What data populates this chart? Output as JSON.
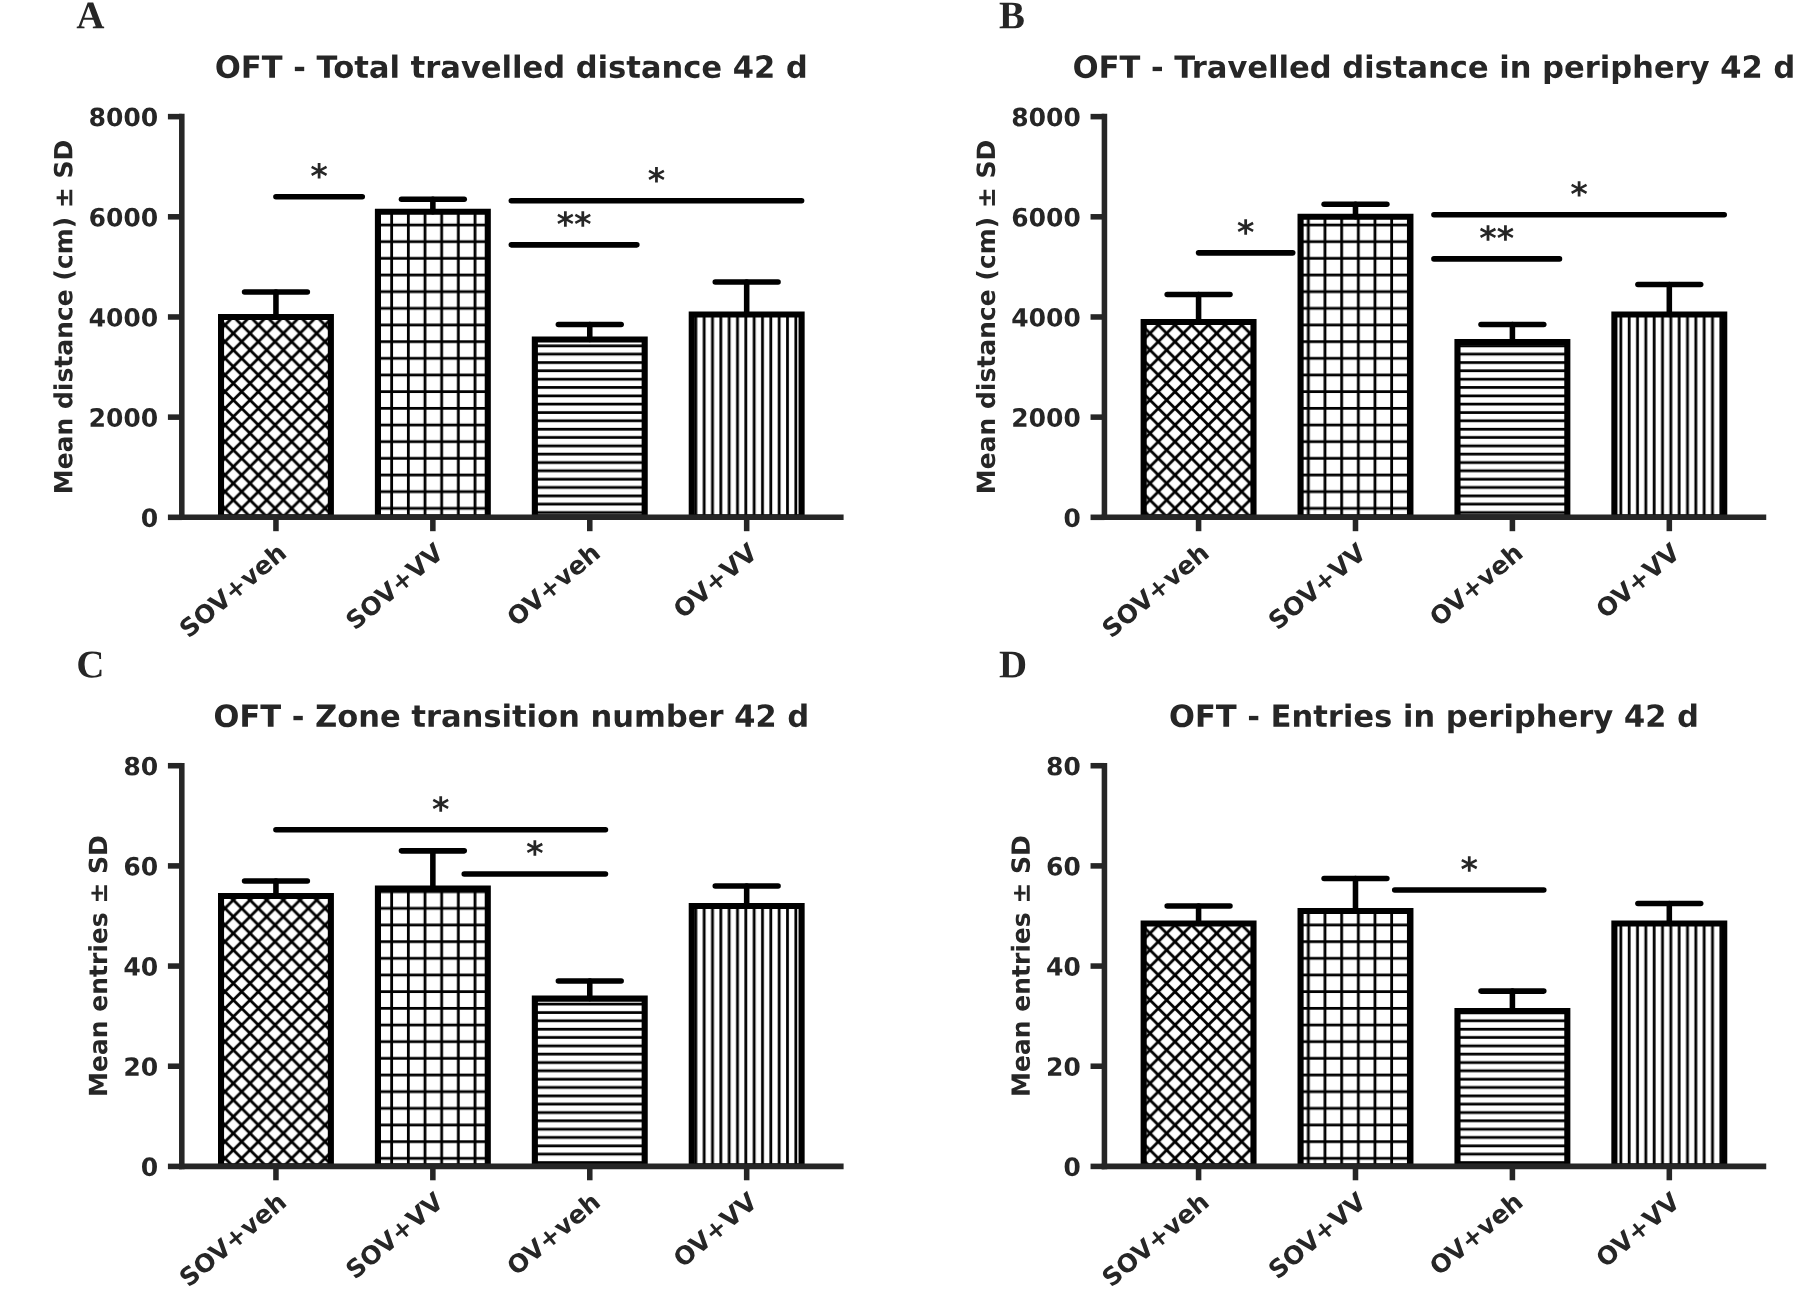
{
  "chart_data": [
    {
      "type": "bar",
      "title": "OFT - Total travelled distance 42 d",
      "ylabel": "Mean distance (cm) ± SD",
      "categories": [
        "SOV+veh",
        "SOV+VV",
        "OV+veh",
        "OV+VV"
      ],
      "values": [
        4000,
        6100,
        3550,
        4050
      ],
      "errors": [
        [
          4000,
          4500
        ],
        [
          6100,
          6350
        ],
        [
          3550,
          3850
        ],
        [
          4050,
          4700
        ]
      ],
      "colors": [
        "#000000",
        "#000000",
        "#000000",
        "#000000"
      ],
      "ylim": [
        0,
        8000
      ],
      "yticks": [
        0,
        2000,
        4000,
        6000,
        8000
      ],
      "grid": false,
      "legend": false,
      "annotations": [
        "A",
        "*",
        "**",
        "*"
      ]
    },
    {
      "type": "bar",
      "title": "OFT - Travelled distance in periphery 42 d",
      "ylabel": "Mean distance (cm) ± SD",
      "categories": [
        "SOV+veh",
        "SOV+VV",
        "OV+veh",
        "OV+VV"
      ],
      "values": [
        3900,
        6000,
        3500,
        4050
      ],
      "errors": [
        [
          3900,
          4450
        ],
        [
          6000,
          6250
        ],
        [
          3500,
          3850
        ],
        [
          4050,
          4650
        ]
      ],
      "colors": [
        "#000000",
        "#000000",
        "#000000",
        "#000000"
      ],
      "ylim": [
        0,
        8000
      ],
      "yticks": [
        0,
        2000,
        4000,
        6000,
        8000
      ],
      "grid": false,
      "legend": false,
      "annotations": [
        "B",
        "*",
        "**",
        "*"
      ]
    },
    {
      "type": "bar",
      "title": "OFT - Zone transition number 42 d",
      "ylabel": "Mean entries ± SD",
      "categories": [
        "SOV+veh",
        "SOV+VV",
        "OV+veh",
        "OV+VV"
      ],
      "values": [
        54,
        55.5,
        33.5,
        52
      ],
      "errors": [
        [
          54,
          57
        ],
        [
          55.5,
          63
        ],
        [
          33.5,
          37
        ],
        [
          52,
          56
        ]
      ],
      "colors": [
        "#000000",
        "#000000",
        "#000000",
        "#000000"
      ],
      "ylim": [
        0,
        80
      ],
      "yticks": [
        0,
        20,
        40,
        60,
        80
      ],
      "grid": false,
      "legend": false,
      "annotations": [
        "C",
        "*",
        "*"
      ]
    },
    {
      "type": "bar",
      "title": "OFT - Entries in periphery 42 d",
      "ylabel": "Mean entries ± SD",
      "categories": [
        "SOV+veh",
        "SOV+VV",
        "OV+veh",
        "OV+VV"
      ],
      "values": [
        48.5,
        51,
        31,
        48.5
      ],
      "errors": [
        [
          48.5,
          52
        ],
        [
          51,
          57.5
        ],
        [
          31,
          35
        ],
        [
          48.5,
          52.5
        ]
      ],
      "colors": [
        "#000000",
        "#000000",
        "#000000",
        "#000000"
      ],
      "ylim": [
        0,
        80
      ],
      "yticks": [
        0,
        20,
        40,
        60,
        80
      ],
      "grid": false,
      "legend": false,
      "annotations": [
        "D",
        "*"
      ]
    }
  ]
}
